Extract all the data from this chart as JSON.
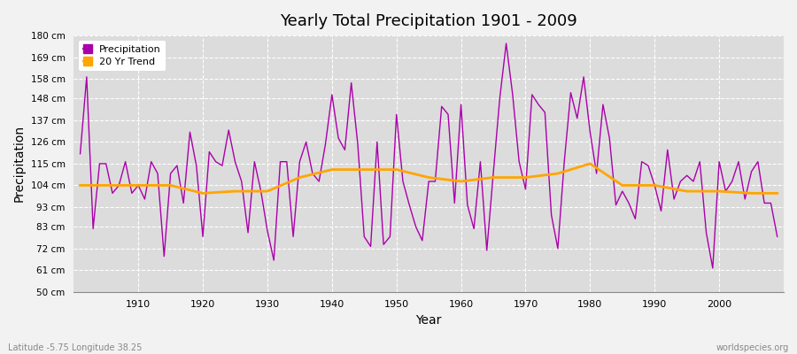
{
  "title": "Yearly Total Precipitation 1901 - 2009",
  "xlabel": "Year",
  "ylabel": "Precipitation",
  "subtitle": "Latitude -5.75 Longitude 38.25",
  "watermark": "worldspecies.org",
  "ylim": [
    50,
    180
  ],
  "yticks": [
    50,
    61,
    72,
    83,
    93,
    104,
    115,
    126,
    137,
    148,
    158,
    169,
    180
  ],
  "ytick_labels": [
    "50 cm",
    "61 cm",
    "72 cm",
    "83 cm",
    "93 cm",
    "104 cm",
    "115 cm",
    "126 cm",
    "137 cm",
    "148 cm",
    "158 cm",
    "169 cm",
    "180 cm"
  ],
  "xlim": [
    1900,
    2010
  ],
  "fig_bg_color": "#f2f2f2",
  "plot_bg_color": "#dcdcdc",
  "precip_color": "#aa00aa",
  "trend_color": "#FFA500",
  "legend_labels": [
    "Precipitation",
    "20 Yr Trend"
  ],
  "years": [
    1901,
    1902,
    1903,
    1904,
    1905,
    1906,
    1907,
    1908,
    1909,
    1910,
    1911,
    1912,
    1913,
    1914,
    1915,
    1916,
    1917,
    1918,
    1919,
    1920,
    1921,
    1922,
    1923,
    1924,
    1925,
    1926,
    1927,
    1928,
    1929,
    1930,
    1931,
    1932,
    1933,
    1934,
    1935,
    1936,
    1937,
    1938,
    1939,
    1940,
    1941,
    1942,
    1943,
    1944,
    1945,
    1946,
    1947,
    1948,
    1949,
    1950,
    1951,
    1952,
    1953,
    1954,
    1955,
    1956,
    1957,
    1958,
    1959,
    1960,
    1961,
    1962,
    1963,
    1964,
    1965,
    1966,
    1967,
    1968,
    1969,
    1970,
    1971,
    1972,
    1973,
    1974,
    1975,
    1976,
    1977,
    1978,
    1979,
    1980,
    1981,
    1982,
    1983,
    1984,
    1985,
    1986,
    1987,
    1988,
    1989,
    1990,
    1991,
    1992,
    1993,
    1994,
    1995,
    1996,
    1997,
    1998,
    1999,
    2000,
    2001,
    2002,
    2003,
    2004,
    2005,
    2006,
    2007,
    2008,
    2009
  ],
  "precipitation": [
    120,
    159,
    82,
    115,
    115,
    100,
    104,
    116,
    100,
    104,
    97,
    116,
    110,
    68,
    110,
    114,
    95,
    131,
    114,
    78,
    121,
    116,
    114,
    132,
    116,
    106,
    80,
    116,
    101,
    81,
    66,
    116,
    116,
    78,
    116,
    126,
    110,
    106,
    125,
    150,
    128,
    122,
    156,
    125,
    78,
    73,
    126,
    74,
    78,
    140,
    106,
    94,
    83,
    76,
    106,
    106,
    144,
    140,
    95,
    145,
    94,
    82,
    116,
    71,
    110,
    148,
    176,
    150,
    116,
    102,
    150,
    145,
    141,
    89,
    72,
    116,
    151,
    138,
    159,
    131,
    110,
    145,
    128,
    94,
    101,
    95,
    87,
    116,
    114,
    104,
    91,
    122,
    97,
    106,
    109,
    106,
    116,
    80,
    62,
    116,
    101,
    106,
    116,
    97,
    111,
    116,
    95,
    95,
    78
  ],
  "trend_years": [
    1901,
    1910,
    1915,
    1920,
    1925,
    1930,
    1935,
    1940,
    1945,
    1950,
    1955,
    1960,
    1965,
    1970,
    1975,
    1980,
    1985,
    1990,
    1995,
    2000,
    2005,
    2009
  ],
  "trend_values": [
    104,
    104,
    104,
    100,
    101,
    101,
    108,
    112,
    112,
    112,
    108,
    106,
    108,
    108,
    110,
    115,
    104,
    104,
    101,
    101,
    100,
    100
  ]
}
